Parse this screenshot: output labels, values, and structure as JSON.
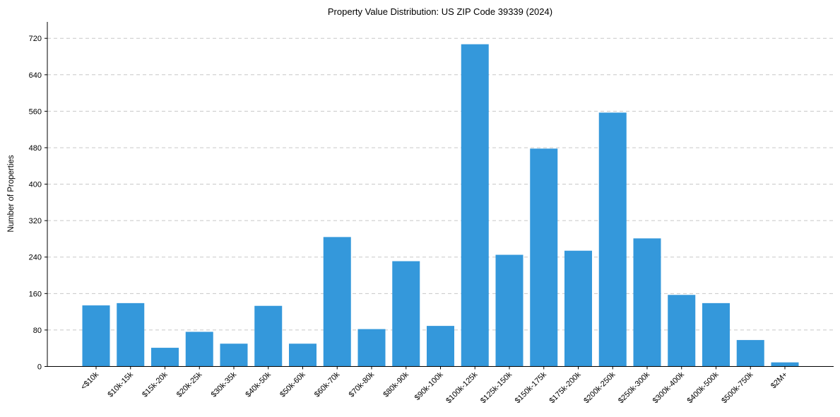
{
  "chart_data": {
    "type": "bar",
    "title": "Property Value Distribution: US ZIP Code 39339 (2024)",
    "xlabel": "",
    "ylabel": "Number of Properties",
    "categories": [
      "<$10k",
      "$10k-15k",
      "$15k-20k",
      "$20k-25k",
      "$30k-35k",
      "$40k-50k",
      "$50k-60k",
      "$60k-70k",
      "$70k-80k",
      "$80k-90k",
      "$90k-100k",
      "$100k-125k",
      "$125k-150k",
      "$150k-175k",
      "$175k-200k",
      "$200k-250k",
      "$250k-300k",
      "$300k-400k",
      "$400k-500k",
      "$500k-750k",
      "$2M+"
    ],
    "values": [
      134,
      139,
      41,
      76,
      50,
      133,
      50,
      284,
      82,
      231,
      89,
      707,
      245,
      478,
      254,
      557,
      281,
      157,
      139,
      58,
      9
    ],
    "yticks": [
      0,
      80,
      160,
      240,
      320,
      400,
      480,
      560,
      640,
      720
    ],
    "ylim": [
      0,
      756
    ],
    "grid": true,
    "bar_color": "#3498db"
  }
}
